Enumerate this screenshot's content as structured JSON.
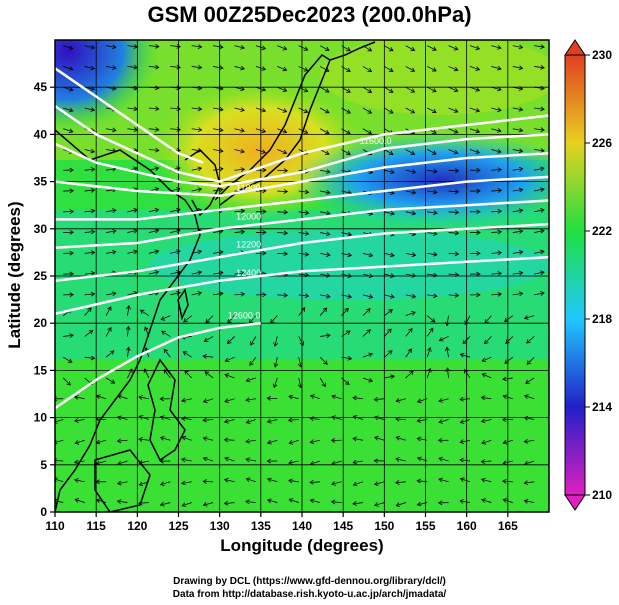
{
  "title": "GSM 00Z25Dec2023 (200.0hPa)",
  "xlabel": "Longitude (degrees)",
  "ylabel": "Latitude  (degrees)",
  "credits": {
    "line1": "Drawing by DCL (https://www.gfd-dennou.org/library/dcl/)",
    "line2": "Data from http://database.rish.kyoto-u.ac.jp/arch/jmadata/"
  },
  "chart_data": {
    "type": "heatmap",
    "xlim": [
      110,
      170
    ],
    "ylim": [
      0,
      50
    ],
    "x_ticks": [
      110,
      115,
      120,
      125,
      130,
      135,
      140,
      145,
      150,
      155,
      160,
      165
    ],
    "y_ticks": [
      0,
      5,
      10,
      15,
      20,
      25,
      30,
      35,
      40,
      45
    ],
    "grid": true,
    "colorbar": {
      "min": 210,
      "max": 230,
      "tick_values": [
        210,
        214,
        218,
        222,
        226,
        230
      ],
      "placement": "right",
      "colors": [
        "#e020c0",
        "#2020c8",
        "#20c8ff",
        "#20e040",
        "#e8d020",
        "#e04020"
      ]
    },
    "contour_labels": [
      "11600.0",
      "11800",
      "12000",
      "12200",
      "12400",
      "12600.0"
    ],
    "background_color": "#20e040",
    "contour_color": "#ffffff"
  }
}
